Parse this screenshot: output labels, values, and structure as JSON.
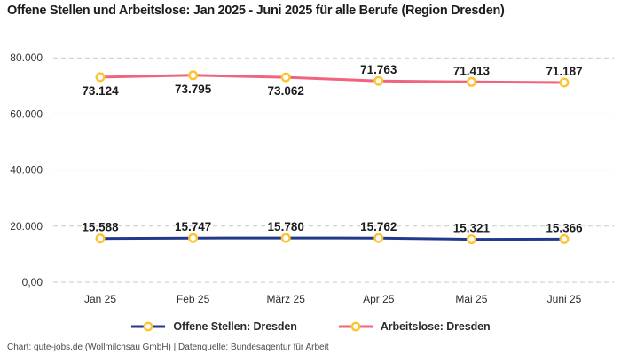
{
  "title": "Offene Stellen und Arbeitslose: Jan 2025 - Juni 2025 für alle Berufe (Region Dresden)",
  "footer": "Chart: gute-jobs.de (Wollmilchsau GmbH) | Datenquelle: Bundesagentur für Arbeit",
  "colors": {
    "offene_stellen_line": "#233a8c",
    "arbeitslose_line": "#f0647e",
    "marker_ring": "#fdc331",
    "marker_fill": "#ffffff",
    "grid": "#c9c9c9",
    "axis_text": "#333333",
    "label_text": "#1c1c1c"
  },
  "chart_data": {
    "type": "line",
    "title": "Offene Stellen und Arbeitslose: Jan 2025 - Juni 2025 für alle Berufe (Region Dresden)",
    "categories": [
      "Jan 25",
      "Feb 25",
      "März 25",
      "Apr 25",
      "Mai 25",
      "Juni 25"
    ],
    "series": [
      {
        "name": "Offene Stellen: Dresden",
        "color": "#233a8c",
        "values": [
          15588,
          15747,
          15780,
          15762,
          15321,
          15366
        ],
        "labels": [
          "15.588",
          "15.747",
          "15.780",
          "15.762",
          "15.321",
          "15.366"
        ],
        "label_side": [
          "above",
          "above",
          "above",
          "above",
          "above",
          "above"
        ]
      },
      {
        "name": "Arbeitslose: Dresden",
        "color": "#f0647e",
        "values": [
          73124,
          73795,
          73062,
          71763,
          71413,
          71187
        ],
        "labels": [
          "73.124",
          "73.795",
          "73.062",
          "71.763",
          "71.413",
          "71.187"
        ],
        "label_side": [
          "below",
          "below",
          "below",
          "above",
          "above",
          "above"
        ]
      }
    ],
    "y_ticks": [
      {
        "value": 0,
        "label": "0,00"
      },
      {
        "value": 20000,
        "label": "20.000"
      },
      {
        "value": 40000,
        "label": "40.000"
      },
      {
        "value": 60000,
        "label": "60.000"
      },
      {
        "value": 80000,
        "label": "80.000"
      }
    ],
    "ylim": [
      0,
      82000
    ],
    "xlabel": "",
    "ylabel": "",
    "grid": "dashed-horizontal",
    "legend_position": "bottom"
  }
}
